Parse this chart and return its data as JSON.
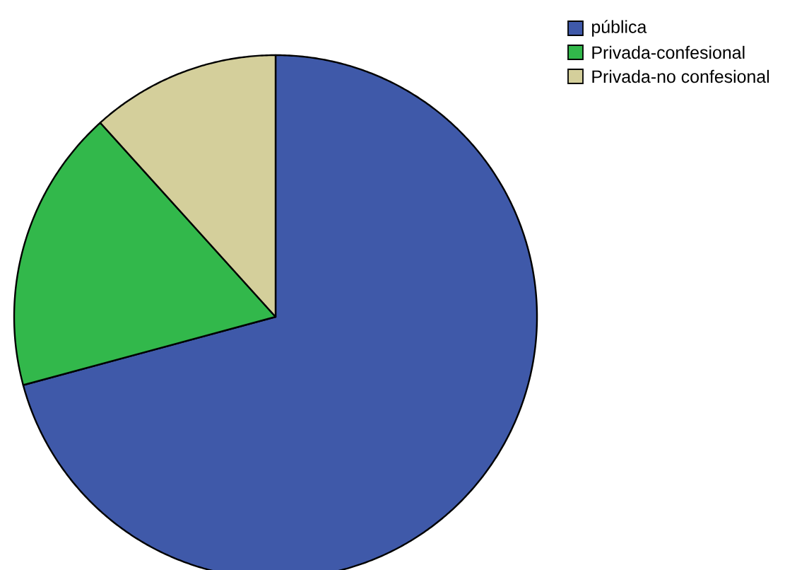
{
  "chart_data": {
    "type": "pie",
    "categories": [
      "pública",
      "Privada-confesional",
      "Privada-no confesional"
    ],
    "values": [
      70.8,
      17.5,
      11.7
    ],
    "colors": [
      "#3f59a9",
      "#32b84b",
      "#d4cf9b"
    ],
    "legend": "top right"
  }
}
